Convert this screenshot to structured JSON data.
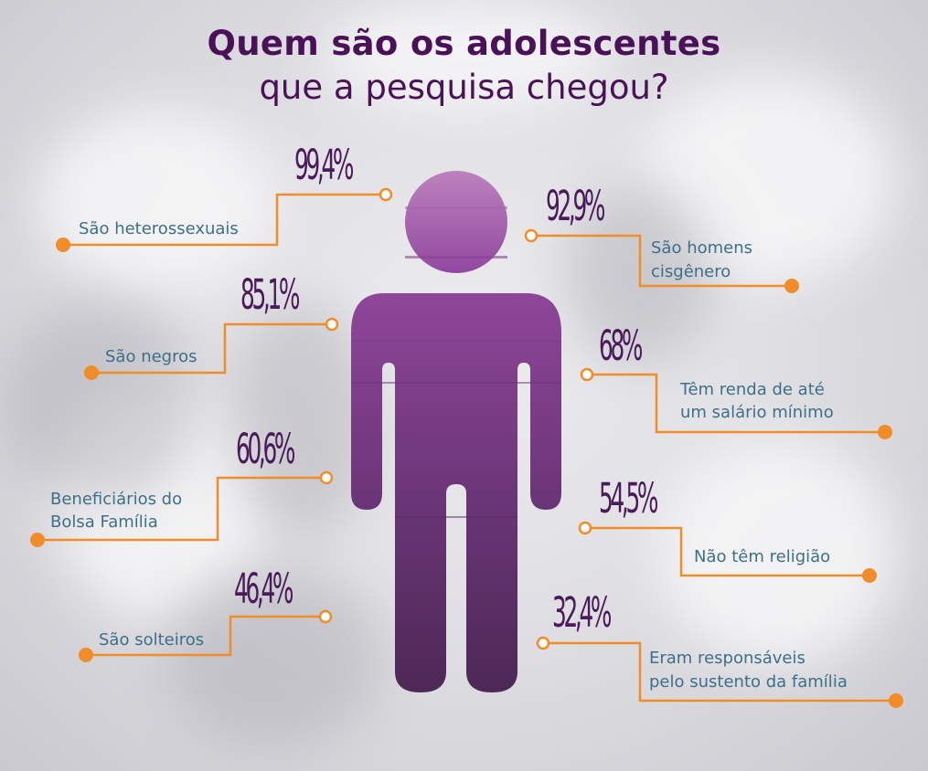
{
  "title": {
    "line1": "Quem são os adolescentes",
    "line2": "que a pesquisa chegou?"
  },
  "colors": {
    "accent": "#f28c28",
    "title": "#4a1158",
    "label": "#3e6f89",
    "figure_top": "#8c4596",
    "figure_bottom": "#4d2856"
  },
  "stats": [
    {
      "value": "99,4%",
      "label": "São heterossexuais"
    },
    {
      "value": "92,9%",
      "label": "São homens cisgênero"
    },
    {
      "value": "85,1%",
      "label": "São negros"
    },
    {
      "value": "68%",
      "label": "Têm renda de até um salário mínimo"
    },
    {
      "value": "60,6%",
      "label": "Beneficiários do Bolsa Família"
    },
    {
      "value": "54,5%",
      "label": "Não têm religião"
    },
    {
      "value": "46,4%",
      "label": "São solteiros"
    },
    {
      "value": "32,4%",
      "label": "Eram responsáveis pelo sustento da família"
    }
  ],
  "label_lines": {
    "homens_1": "São homens",
    "homens_2": "cisgênero",
    "renda_1": "Têm renda de até",
    "renda_2": "um salário mínimo",
    "bolsa_1": "Beneficiários do",
    "bolsa_2": "Bolsa Família",
    "sustento_1": "Eram responsáveis",
    "sustento_2": "pelo sustento da família"
  },
  "figure_icon": "person-icon"
}
